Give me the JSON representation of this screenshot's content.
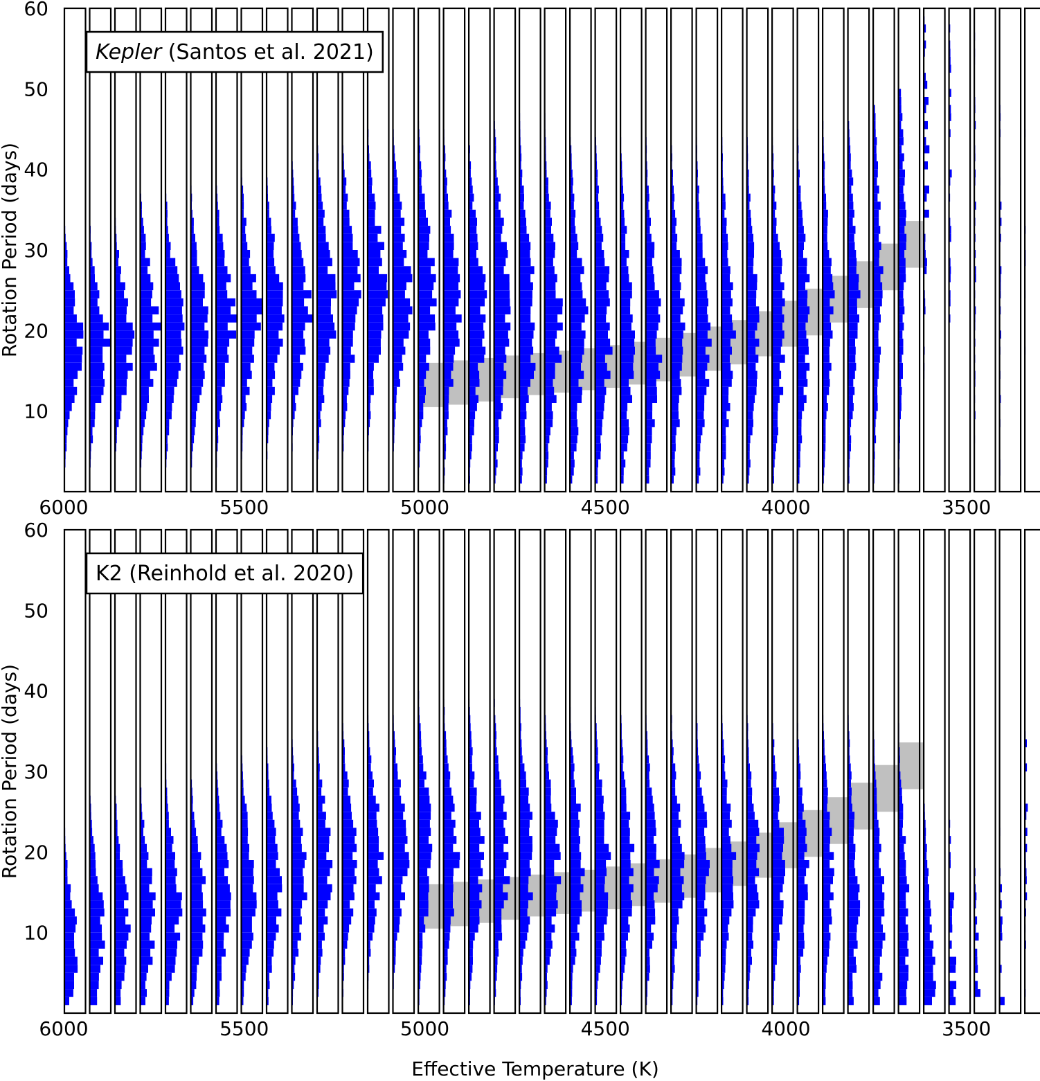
{
  "figure": {
    "xlabel": "Effective Temperature (K)",
    "ylabel": "Rotation Period (days)",
    "colors": {
      "hist": "#0000ff",
      "band": "#c0c0c0",
      "frame": "#000000"
    }
  },
  "chart_data": [
    {
      "type": "histogram-panel",
      "legend_prefix": "Kepler",
      "legend_suffix": " (Santos et al. 2021)",
      "legend_prefix_italic": true,
      "legend_location": "upper-left",
      "xlim": [
        6000,
        3300
      ],
      "ylim": [
        0,
        60
      ],
      "xticks": [
        6000,
        5500,
        5000,
        4500,
        4000,
        3500
      ],
      "yticks": [
        10,
        20,
        30,
        40,
        50,
        60
      ],
      "bin_width_K": 70,
      "period_bin_days": 1,
      "histogram_direction": "horizontal",
      "sparse_from_K": 3640,
      "bins": [
        {
          "teff": 6000,
          "peak": 18,
          "spread": 6,
          "max": 37,
          "density": 1
        },
        {
          "teff": 5930,
          "peak": 18,
          "spread": 6,
          "max": 35,
          "density": 1
        },
        {
          "teff": 5860,
          "peak": 19,
          "spread": 6,
          "max": 37,
          "density": 1
        },
        {
          "teff": 5790,
          "peak": 20,
          "spread": 7,
          "max": 37,
          "density": 1
        },
        {
          "teff": 5720,
          "peak": 20,
          "spread": 7,
          "max": 40,
          "density": 1
        },
        {
          "teff": 5650,
          "peak": 20,
          "spread": 7,
          "max": 40,
          "density": 1
        },
        {
          "teff": 5580,
          "peak": 21,
          "spread": 7,
          "max": 40,
          "density": 1
        },
        {
          "teff": 5510,
          "peak": 22,
          "spread": 7,
          "max": 40,
          "density": 1
        },
        {
          "teff": 5440,
          "peak": 22,
          "spread": 7,
          "max": 42,
          "density": 1
        },
        {
          "teff": 5370,
          "peak": 23,
          "spread": 7,
          "max": 42,
          "density": 1
        },
        {
          "teff": 5300,
          "peak": 23,
          "spread": 8,
          "max": 45,
          "density": 1
        },
        {
          "teff": 5230,
          "peak": 24,
          "spread": 8,
          "max": 45,
          "density": 1
        },
        {
          "teff": 5160,
          "peak": 25,
          "spread": 8,
          "max": 45,
          "density": 1
        },
        {
          "teff": 5090,
          "peak": 25,
          "spread": 8,
          "max": 47,
          "density": 1
        },
        {
          "teff": 5020,
          "peak": 24,
          "spread": 9,
          "max": 47,
          "density": 0.9
        },
        {
          "teff": 4950,
          "peak": 23,
          "spread": 9,
          "max": 47,
          "density": 0.9
        },
        {
          "teff": 4880,
          "peak": 22,
          "spread": 9,
          "max": 47,
          "density": 0.9
        },
        {
          "teff": 4810,
          "peak": 22,
          "spread": 10,
          "max": 47,
          "density": 0.9
        },
        {
          "teff": 4740,
          "peak": 21,
          "spread": 10,
          "max": 47,
          "density": 0.9
        },
        {
          "teff": 4670,
          "peak": 21,
          "spread": 10,
          "max": 47,
          "density": 0.9
        },
        {
          "teff": 4600,
          "peak": 20,
          "spread": 10,
          "max": 47,
          "density": 0.9
        },
        {
          "teff": 4530,
          "peak": 20,
          "spread": 10,
          "max": 47,
          "density": 0.9
        },
        {
          "teff": 4460,
          "peak": 19,
          "spread": 10,
          "max": 47,
          "density": 0.8
        },
        {
          "teff": 4390,
          "peak": 19,
          "spread": 10,
          "max": 46,
          "density": 0.8
        },
        {
          "teff": 4320,
          "peak": 19,
          "spread": 10,
          "max": 46,
          "density": 0.8
        },
        {
          "teff": 4250,
          "peak": 19,
          "spread": 10,
          "max": 46,
          "density": 0.8
        },
        {
          "teff": 4180,
          "peak": 20,
          "spread": 10,
          "max": 46,
          "density": 0.7
        },
        {
          "teff": 4110,
          "peak": 20,
          "spread": 10,
          "max": 46,
          "density": 0.7
        },
        {
          "teff": 4040,
          "peak": 20,
          "spread": 10,
          "max": 46,
          "density": 0.7
        },
        {
          "teff": 3970,
          "peak": 21,
          "spread": 10,
          "max": 46,
          "density": 0.7
        },
        {
          "teff": 3900,
          "peak": 22,
          "spread": 10,
          "max": 46,
          "density": 0.6
        },
        {
          "teff": 3830,
          "peak": 24,
          "spread": 11,
          "max": 46,
          "density": 0.6
        },
        {
          "teff": 3760,
          "peak": 26,
          "spread": 12,
          "max": 48,
          "density": 0.5
        },
        {
          "teff": 3690,
          "peak": 30,
          "spread": 14,
          "max": 50,
          "density": 0.4
        },
        {
          "teff": 3620,
          "peak": 40,
          "spread": 12,
          "max": 60,
          "density": 0.3
        },
        {
          "teff": 3550,
          "peak": 40,
          "spread": 14,
          "max": 60,
          "density": 0.15
        },
        {
          "teff": 3480,
          "peak": 30,
          "spread": 20,
          "max": 60,
          "density": 0.1
        },
        {
          "teff": 3410,
          "peak": 30,
          "spread": 20,
          "max": 60,
          "density": 0.1
        },
        {
          "teff": 3340,
          "peak": 30,
          "spread": 20,
          "max": 60,
          "density": 0.05
        }
      ],
      "gap_band": [
        {
          "teff": 5020,
          "lo": 10.5,
          "hi": 16
        },
        {
          "teff": 4950,
          "lo": 10.8,
          "hi": 16.3
        },
        {
          "teff": 4880,
          "lo": 11.2,
          "hi": 16.6
        },
        {
          "teff": 4810,
          "lo": 11.6,
          "hi": 16.9
        },
        {
          "teff": 4740,
          "lo": 12,
          "hi": 17.2
        },
        {
          "teff": 4670,
          "lo": 12.3,
          "hi": 17.5
        },
        {
          "teff": 4600,
          "lo": 12.6,
          "hi": 17.8
        },
        {
          "teff": 4530,
          "lo": 12.9,
          "hi": 18.2
        },
        {
          "teff": 4460,
          "lo": 13.3,
          "hi": 18.6
        },
        {
          "teff": 4390,
          "lo": 13.7,
          "hi": 19.1
        },
        {
          "teff": 4320,
          "lo": 14.3,
          "hi": 19.7
        },
        {
          "teff": 4250,
          "lo": 15,
          "hi": 20.5
        },
        {
          "teff": 4180,
          "lo": 15.8,
          "hi": 21.3
        },
        {
          "teff": 4110,
          "lo": 16.8,
          "hi": 22.4
        },
        {
          "teff": 4040,
          "lo": 18,
          "hi": 23.7
        },
        {
          "teff": 3970,
          "lo": 19.4,
          "hi": 25.2
        },
        {
          "teff": 3900,
          "lo": 21,
          "hi": 26.8
        },
        {
          "teff": 3830,
          "lo": 22.8,
          "hi": 28.6
        },
        {
          "teff": 3760,
          "lo": 25,
          "hi": 30.8
        },
        {
          "teff": 3690,
          "lo": 27.8,
          "hi": 33.6
        }
      ]
    },
    {
      "type": "histogram-panel",
      "legend_prefix": "K2",
      "legend_suffix": " (Reinhold et al. 2020)",
      "legend_prefix_italic": false,
      "legend_location": "upper-left",
      "xlim": [
        6000,
        3300
      ],
      "ylim": [
        0,
        60
      ],
      "xticks": [
        6000,
        5500,
        5000,
        4500,
        4000,
        3500
      ],
      "yticks": [
        10,
        20,
        30,
        40,
        50,
        60
      ],
      "bin_width_K": 70,
      "period_bin_days": 1,
      "histogram_direction": "horizontal",
      "sparse_from_K": 3570,
      "bins": [
        {
          "teff": 6000,
          "peak": 8,
          "spread": 6,
          "max": 36,
          "density": 0.7
        },
        {
          "teff": 5930,
          "peak": 10,
          "spread": 7,
          "max": 37,
          "density": 0.8
        },
        {
          "teff": 5860,
          "peak": 11,
          "spread": 7,
          "max": 37,
          "density": 0.8
        },
        {
          "teff": 5790,
          "peak": 12,
          "spread": 7,
          "max": 37,
          "density": 0.8
        },
        {
          "teff": 5720,
          "peak": 13,
          "spread": 7,
          "max": 38,
          "density": 0.8
        },
        {
          "teff": 5650,
          "peak": 13,
          "spread": 7,
          "max": 38,
          "density": 0.8
        },
        {
          "teff": 5580,
          "peak": 14,
          "spread": 7,
          "max": 38,
          "density": 0.8
        },
        {
          "teff": 5510,
          "peak": 15,
          "spread": 7,
          "max": 39,
          "density": 0.8
        },
        {
          "teff": 5440,
          "peak": 16,
          "spread": 7,
          "max": 39,
          "density": 0.8
        },
        {
          "teff": 5370,
          "peak": 17,
          "spread": 7,
          "max": 39,
          "density": 0.8
        },
        {
          "teff": 5300,
          "peak": 18,
          "spread": 7,
          "max": 39,
          "density": 0.8
        },
        {
          "teff": 5230,
          "peak": 19,
          "spread": 7,
          "max": 40,
          "density": 0.8
        },
        {
          "teff": 5160,
          "peak": 20,
          "spread": 7,
          "max": 40,
          "density": 0.8
        },
        {
          "teff": 5090,
          "peak": 20,
          "spread": 7,
          "max": 40,
          "density": 0.8
        },
        {
          "teff": 5020,
          "peak": 20,
          "spread": 8,
          "max": 40,
          "density": 0.8
        },
        {
          "teff": 4950,
          "peak": 19,
          "spread": 8,
          "max": 40,
          "density": 0.8
        },
        {
          "teff": 4880,
          "peak": 19,
          "spread": 8,
          "max": 40,
          "density": 0.8
        },
        {
          "teff": 4810,
          "peak": 19,
          "spread": 8,
          "max": 40,
          "density": 0.8
        },
        {
          "teff": 4740,
          "peak": 19,
          "spread": 8,
          "max": 40,
          "density": 0.8
        },
        {
          "teff": 4670,
          "peak": 18,
          "spread": 8,
          "max": 40,
          "density": 0.8
        },
        {
          "teff": 4600,
          "peak": 18,
          "spread": 8,
          "max": 40,
          "density": 0.8
        },
        {
          "teff": 4530,
          "peak": 18,
          "spread": 8,
          "max": 40,
          "density": 0.8
        },
        {
          "teff": 4460,
          "peak": 18,
          "spread": 8,
          "max": 40,
          "density": 0.7
        },
        {
          "teff": 4390,
          "peak": 18,
          "spread": 8,
          "max": 39,
          "density": 0.7
        },
        {
          "teff": 4320,
          "peak": 18,
          "spread": 8,
          "max": 39,
          "density": 0.7
        },
        {
          "teff": 4250,
          "peak": 18,
          "spread": 8,
          "max": 39,
          "density": 0.7
        },
        {
          "teff": 4180,
          "peak": 18,
          "spread": 8,
          "max": 39,
          "density": 0.7
        },
        {
          "teff": 4110,
          "peak": 18,
          "spread": 8,
          "max": 39,
          "density": 0.7
        },
        {
          "teff": 4040,
          "peak": 18,
          "spread": 8,
          "max": 39,
          "density": 0.7
        },
        {
          "teff": 3970,
          "peak": 17,
          "spread": 8,
          "max": 39,
          "density": 0.6
        },
        {
          "teff": 3900,
          "peak": 16,
          "spread": 9,
          "max": 38,
          "density": 0.6
        },
        {
          "teff": 3830,
          "peak": 14,
          "spread": 10,
          "max": 38,
          "density": 0.6
        },
        {
          "teff": 3760,
          "peak": 12,
          "spread": 10,
          "max": 38,
          "density": 0.6
        },
        {
          "teff": 3690,
          "peak": 10,
          "spread": 11,
          "max": 38,
          "density": 0.6
        },
        {
          "teff": 3620,
          "peak": 4,
          "spread": 10,
          "max": 38,
          "density": 0.6
        },
        {
          "teff": 3550,
          "peak": 3,
          "spread": 10,
          "max": 38,
          "density": 0.5
        },
        {
          "teff": 3480,
          "peak": 3,
          "spread": 8,
          "max": 38,
          "density": 0.3
        },
        {
          "teff": 3410,
          "peak": 3,
          "spread": 10,
          "max": 38,
          "density": 0.25
        },
        {
          "teff": 3340,
          "peak": 22,
          "spread": 14,
          "max": 36,
          "density": 0.15
        }
      ],
      "gap_band": [
        {
          "teff": 5020,
          "lo": 10.5,
          "hi": 16
        },
        {
          "teff": 4950,
          "lo": 10.8,
          "hi": 16.3
        },
        {
          "teff": 4880,
          "lo": 11.2,
          "hi": 16.6
        },
        {
          "teff": 4810,
          "lo": 11.6,
          "hi": 16.9
        },
        {
          "teff": 4740,
          "lo": 12,
          "hi": 17.2
        },
        {
          "teff": 4670,
          "lo": 12.3,
          "hi": 17.5
        },
        {
          "teff": 4600,
          "lo": 12.6,
          "hi": 17.8
        },
        {
          "teff": 4530,
          "lo": 12.9,
          "hi": 18.2
        },
        {
          "teff": 4460,
          "lo": 13.3,
          "hi": 18.6
        },
        {
          "teff": 4390,
          "lo": 13.7,
          "hi": 19.1
        },
        {
          "teff": 4320,
          "lo": 14.3,
          "hi": 19.7
        },
        {
          "teff": 4250,
          "lo": 15,
          "hi": 20.5
        },
        {
          "teff": 4180,
          "lo": 15.8,
          "hi": 21.3
        },
        {
          "teff": 4110,
          "lo": 16.8,
          "hi": 22.4
        },
        {
          "teff": 4040,
          "lo": 18,
          "hi": 23.7
        },
        {
          "teff": 3970,
          "lo": 19.4,
          "hi": 25.2
        },
        {
          "teff": 3900,
          "lo": 21,
          "hi": 26.8
        },
        {
          "teff": 3830,
          "lo": 22.8,
          "hi": 28.6
        },
        {
          "teff": 3760,
          "lo": 25,
          "hi": 30.8
        },
        {
          "teff": 3690,
          "lo": 27.8,
          "hi": 33.6
        }
      ]
    }
  ]
}
